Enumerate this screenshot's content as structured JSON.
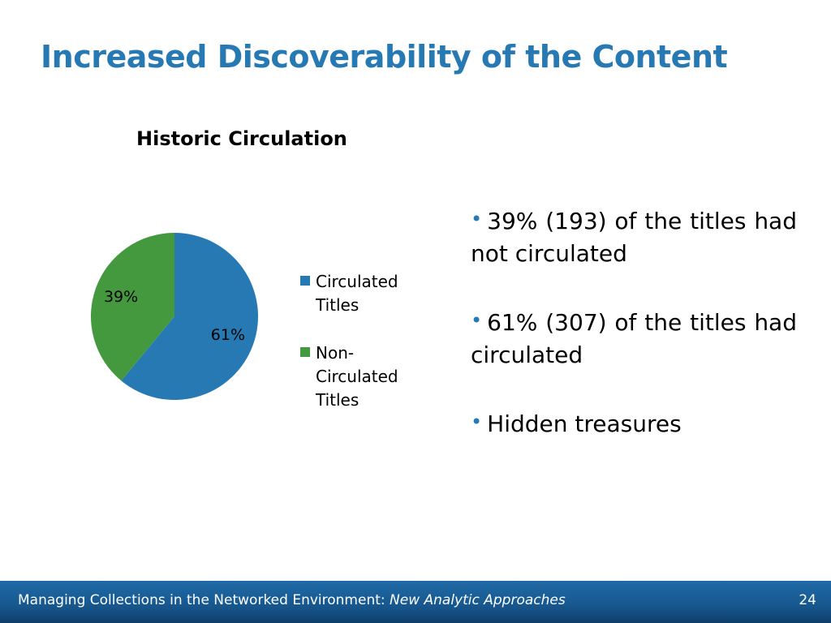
{
  "slide": {
    "title": "Increased Discoverability of the Content",
    "accent_color": "#2779b4"
  },
  "chart_data": {
    "type": "pie",
    "title": "Historic Circulation",
    "slices": [
      {
        "name": "Circulated Titles",
        "value": 61,
        "label": "61%",
        "color": "#2779b4"
      },
      {
        "name": "Non-Circulated Titles",
        "value": 39,
        "label": "39%",
        "color": "#44993f"
      }
    ],
    "legend": {
      "placement": "right",
      "entries": [
        {
          "text": "Circulated Titles",
          "color": "#2779b4"
        },
        {
          "text": "Non-Circulated Titles",
          "color": "#44993f"
        }
      ]
    }
  },
  "bullets": [
    "39% (193) of the titles had not circulated",
    "61% (307) of the titles had circulated",
    "Hidden treasures"
  ],
  "footer": {
    "text": "Managing Collections in the Networked Environment:",
    "subtitle": "New Analytic Approaches",
    "page_number": "24"
  }
}
